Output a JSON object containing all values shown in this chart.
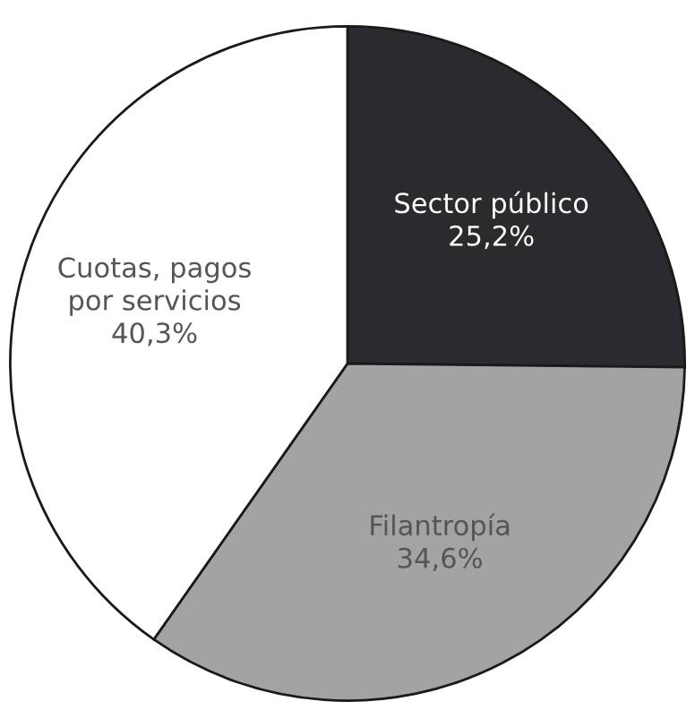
{
  "chart_data": {
    "type": "pie",
    "categories": [
      "Sector público",
      "Filantropía",
      "Cuotas, pagos\npor servicios"
    ],
    "values": [
      25.2,
      34.6,
      40.3
    ],
    "value_labels": [
      "25,2%",
      "34,6%",
      "40,3%"
    ],
    "colors": [
      "#2b2a2e",
      "#a3a3a3",
      "#ffffff"
    ]
  }
}
